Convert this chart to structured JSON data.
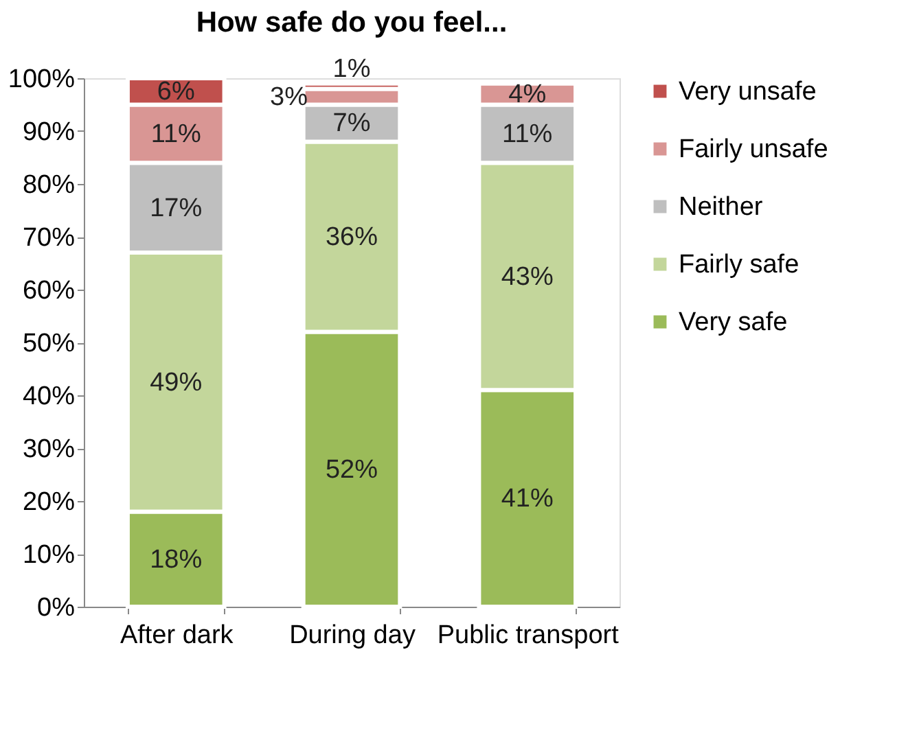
{
  "chart_data": {
    "type": "bar",
    "stacked": true,
    "title": "How safe do you feel...",
    "categories": [
      "After dark",
      "During day",
      "Public transport"
    ],
    "series": [
      {
        "name": "Very safe",
        "color": "#9bbb59",
        "values": [
          18,
          52,
          41
        ]
      },
      {
        "name": "Fairly safe",
        "color": "#c3d69b",
        "values": [
          49,
          36,
          43
        ]
      },
      {
        "name": "Neither",
        "color": "#bfbfbf",
        "values": [
          17,
          7,
          11
        ]
      },
      {
        "name": "Fairly unsafe",
        "color": "#d99694",
        "values": [
          11,
          3,
          4
        ]
      },
      {
        "name": "Very unsafe",
        "color": "#c0504d",
        "values": [
          5,
          1,
          null
        ]
      }
    ],
    "value_labels": [
      [
        "18%",
        "52%",
        "41%"
      ],
      [
        "49%",
        "36%",
        "43%"
      ],
      [
        "17%",
        "7%",
        "11%"
      ],
      [
        "11%",
        "3%",
        "4%"
      ],
      [
        "6%",
        "1%",
        null
      ]
    ],
    "ylim": [
      0,
      100
    ],
    "yticks": [
      {
        "value": 0,
        "label": "0%"
      },
      {
        "value": 10,
        "label": "10%"
      },
      {
        "value": 20,
        "label": "20%"
      },
      {
        "value": 30,
        "label": "30%"
      },
      {
        "value": 40,
        "label": "40%"
      },
      {
        "value": 50,
        "label": "50%"
      },
      {
        "value": 60,
        "label": "60%"
      },
      {
        "value": 70,
        "label": "70%"
      },
      {
        "value": 80,
        "label": "80%"
      },
      {
        "value": 90,
        "label": "90%"
      },
      {
        "value": 100,
        "label": "100%"
      }
    ],
    "legend": "right",
    "grid": false
  }
}
